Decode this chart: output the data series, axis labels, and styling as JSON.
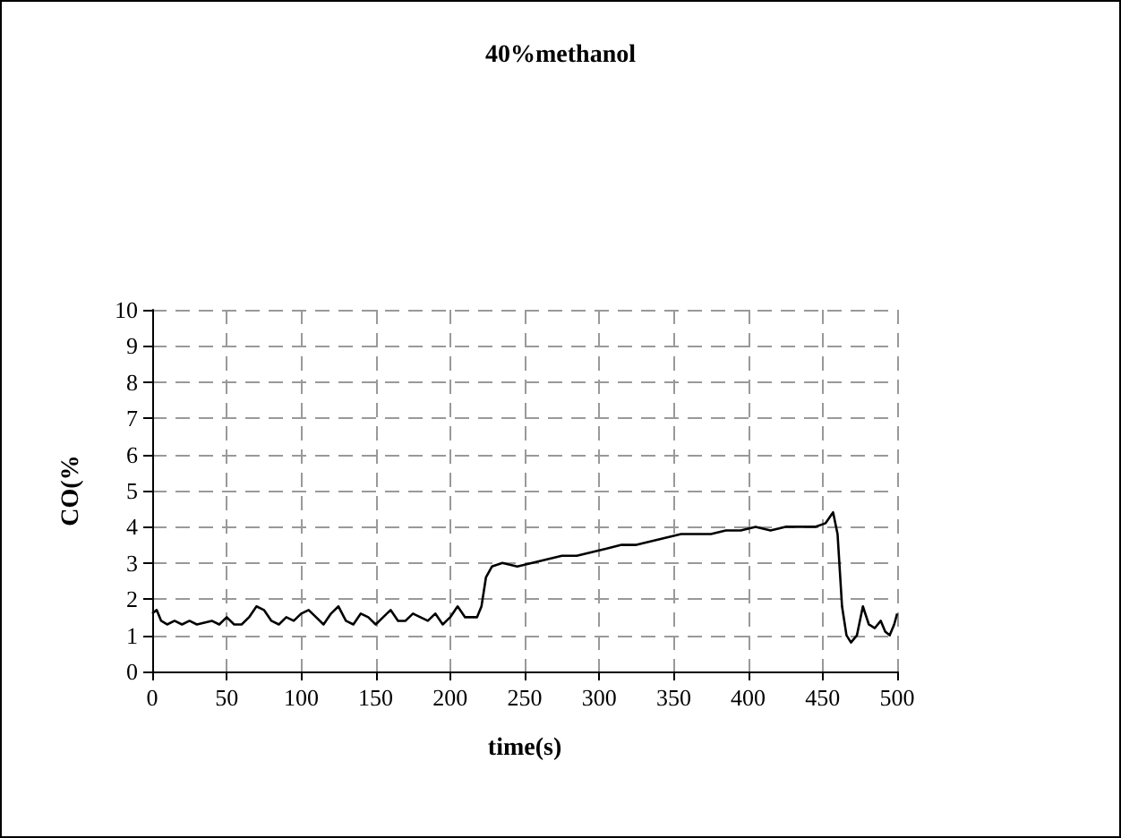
{
  "chart_data": {
    "type": "line",
    "title": "40%methanol",
    "xlabel": "time(s)",
    "ylabel": "CO(%",
    "x": [
      0,
      3,
      6,
      10,
      15,
      20,
      25,
      30,
      35,
      40,
      45,
      50,
      55,
      60,
      65,
      70,
      75,
      80,
      85,
      90,
      95,
      100,
      105,
      110,
      115,
      120,
      125,
      130,
      135,
      140,
      145,
      150,
      155,
      160,
      165,
      170,
      175,
      180,
      185,
      190,
      195,
      200,
      205,
      210,
      215,
      218,
      221,
      224,
      228,
      235,
      245,
      255,
      265,
      275,
      285,
      295,
      305,
      315,
      325,
      335,
      345,
      355,
      365,
      375,
      385,
      395,
      405,
      415,
      425,
      435,
      445,
      452,
      457,
      460,
      463,
      466,
      469,
      473,
      477,
      481,
      485,
      489,
      492,
      495,
      498,
      500
    ],
    "series": [
      {
        "color": "#000000",
        "values": [
          1.6,
          1.7,
          1.4,
          1.3,
          1.4,
          1.3,
          1.4,
          1.3,
          1.35,
          1.4,
          1.3,
          1.5,
          1.3,
          1.3,
          1.5,
          1.8,
          1.7,
          1.4,
          1.3,
          1.5,
          1.4,
          1.6,
          1.7,
          1.5,
          1.3,
          1.6,
          1.8,
          1.4,
          1.3,
          1.6,
          1.5,
          1.3,
          1.5,
          1.7,
          1.4,
          1.4,
          1.6,
          1.5,
          1.4,
          1.6,
          1.3,
          1.5,
          1.8,
          1.5,
          1.5,
          1.5,
          1.8,
          2.6,
          2.9,
          3.0,
          2.9,
          3.0,
          3.1,
          3.2,
          3.2,
          3.3,
          3.4,
          3.5,
          3.5,
          3.6,
          3.7,
          3.8,
          3.8,
          3.8,
          3.9,
          3.9,
          4.0,
          3.9,
          4.0,
          4.0,
          4.0,
          4.1,
          4.4,
          3.8,
          1.8,
          1.0,
          0.8,
          1.0,
          1.8,
          1.3,
          1.2,
          1.4,
          1.1,
          1.0,
          1.3,
          1.6
        ]
      }
    ],
    "xlim": [
      0,
      500
    ],
    "xticks": [
      0,
      50,
      100,
      150,
      200,
      250,
      300,
      350,
      400,
      450,
      500
    ],
    "ylim": [
      0,
      10
    ],
    "yticks": [
      0,
      1,
      2,
      3,
      4,
      5,
      6,
      7,
      8,
      9,
      10
    ],
    "grid": true,
    "marker": "none",
    "line_style": "solid"
  }
}
